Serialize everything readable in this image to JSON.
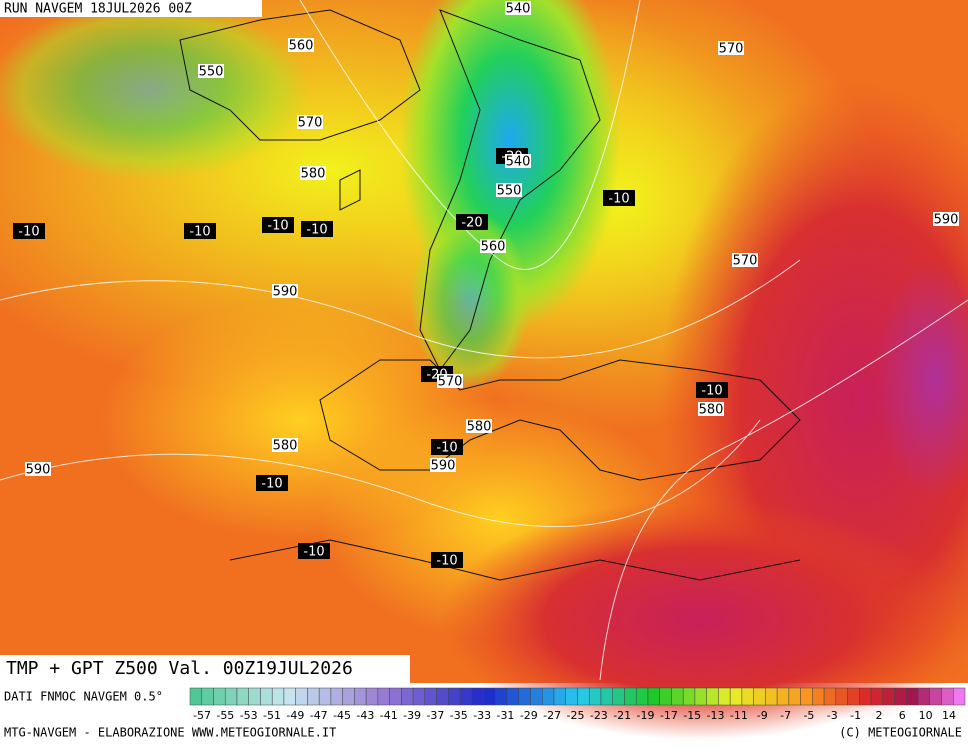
{
  "header": {
    "run": "RUN NAVGEM 18JUL2026 00Z"
  },
  "map": {
    "z500_labels": [
      540,
      560,
      550,
      570,
      570,
      540,
      580,
      550,
      560,
      590,
      570,
      590,
      570,
      580,
      580,
      580,
      590,
      590
    ],
    "temp_labels": [
      -10,
      -10,
      -10,
      -10,
      -20,
      -10,
      -10,
      -10,
      -10,
      -10,
      -10,
      -20,
      -20
    ]
  },
  "footer": {
    "title": "TMP + GPT Z500 Val. 00Z19JUL2026",
    "source": "DATI FNMOC NAVGEM 0.5°",
    "credit": "MTG-NAVGEM - ELABORAZIONE WWW.METEOGIORNALE.IT",
    "copyright": "(C) METEOGIORNALE"
  },
  "colorbar": {
    "labels": [
      -57,
      -55,
      -53,
      -51,
      -49,
      -47,
      -45,
      -43,
      -41,
      -39,
      -37,
      -35,
      -33,
      -31,
      -29,
      -27,
      -25,
      -23,
      -21,
      -19,
      -17,
      -15,
      -13,
      -11,
      -9,
      -7,
      -5,
      -3,
      -1,
      2,
      6,
      10,
      14
    ]
  }
}
